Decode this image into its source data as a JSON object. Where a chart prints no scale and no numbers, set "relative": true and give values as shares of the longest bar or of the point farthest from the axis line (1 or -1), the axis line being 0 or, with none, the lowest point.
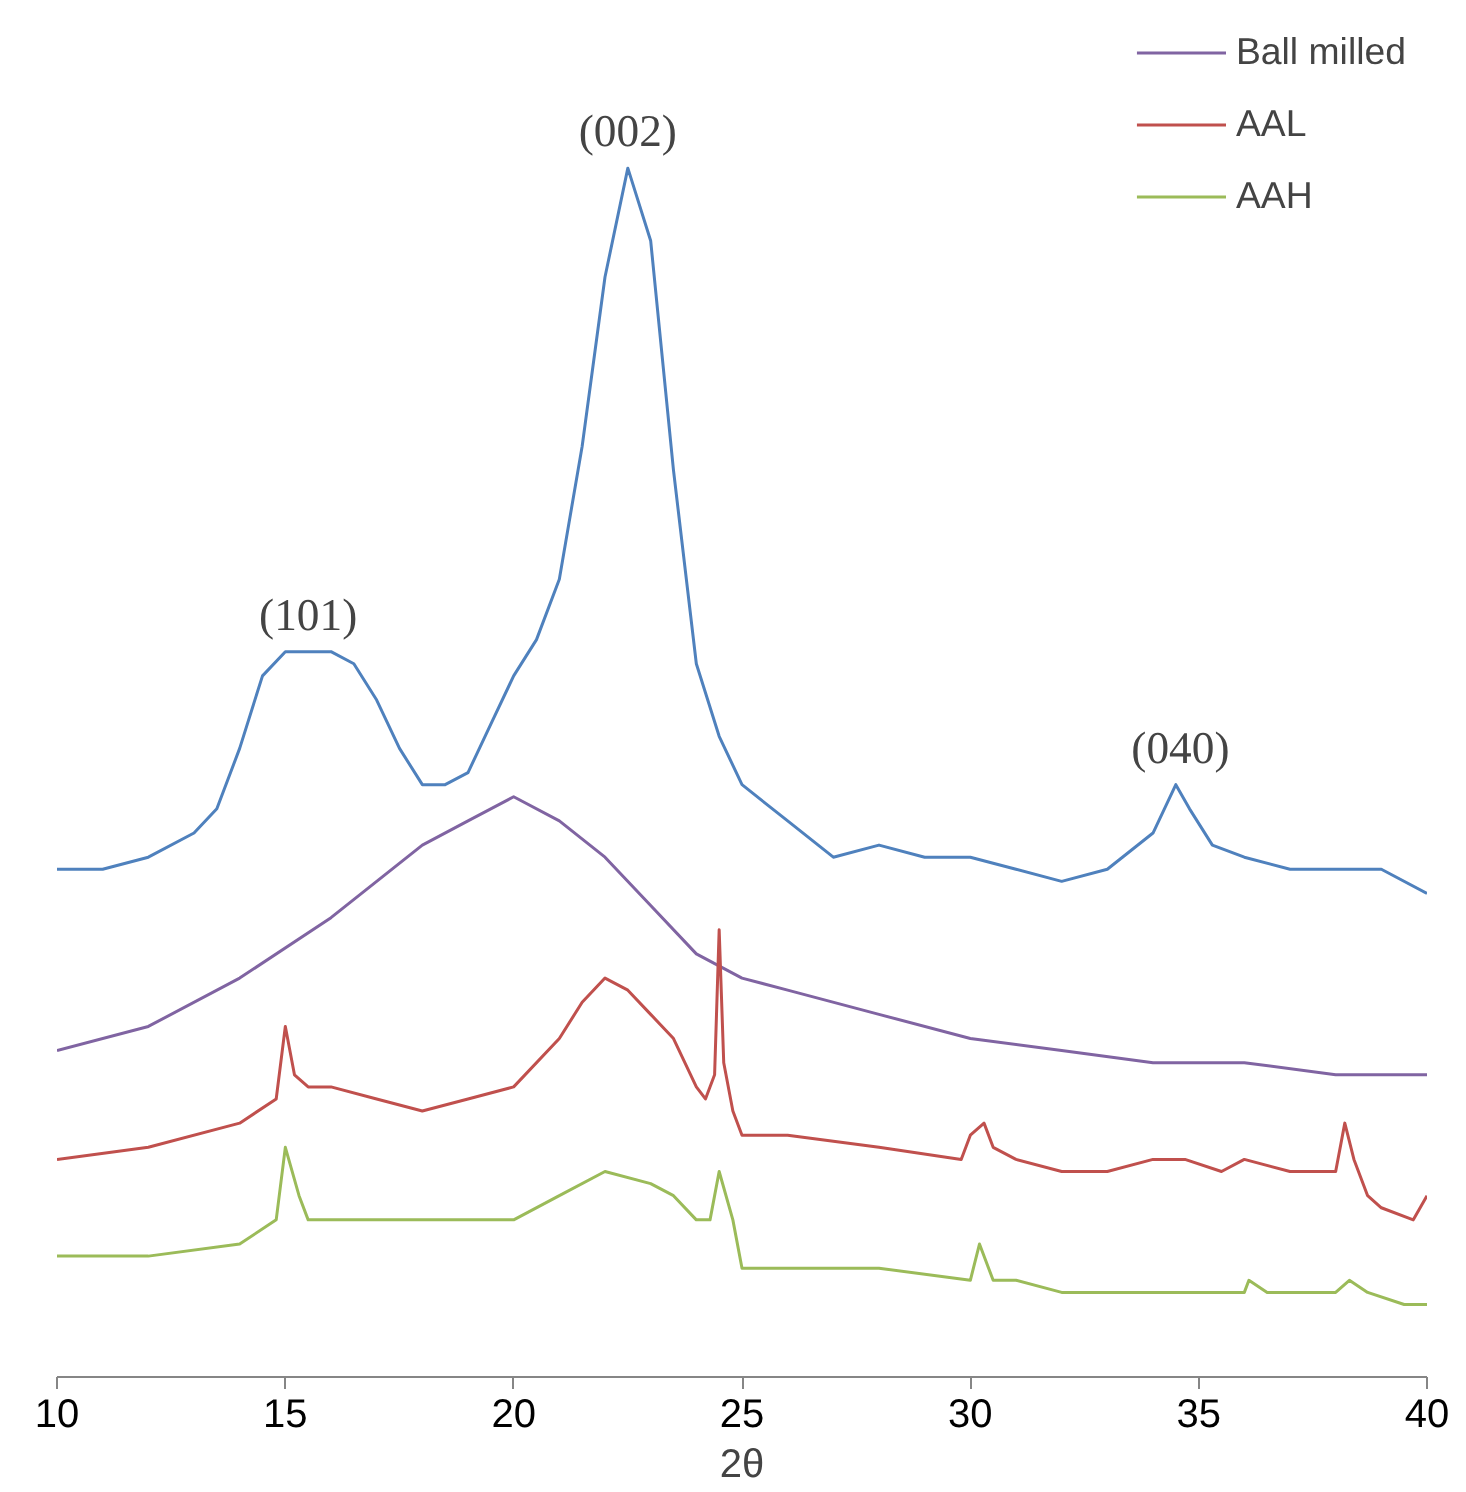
{
  "chart_data": {
    "type": "line",
    "relative": true,
    "xlabel": "2θ",
    "xlim": [
      10,
      40
    ],
    "xticks": [
      10,
      15,
      20,
      25,
      30,
      35,
      40
    ],
    "grid": false,
    "legend": "top right",
    "marker": "none",
    "line_style": "solid",
    "tick_labels": "x",
    "annotations": [
      {
        "text": "(101)",
        "x": 15.5,
        "y": 0.6
      },
      {
        "text": "(002)",
        "x": 22.5,
        "y": 1.0
      },
      {
        "text": "(040)",
        "x": 34.6,
        "y": 0.49
      }
    ],
    "series": [
      {
        "color": "#4f81bd",
        "x": [
          10,
          11,
          12,
          13,
          13.5,
          14,
          14.5,
          15,
          16,
          16.5,
          17,
          17.5,
          18,
          18.5,
          19,
          19.5,
          20,
          20.5,
          21,
          21.5,
          22,
          22.5,
          23,
          23.5,
          24,
          24.5,
          25,
          26,
          27,
          28,
          29,
          30,
          31,
          32,
          33,
          34,
          34.5,
          34.8,
          35.3,
          36,
          37,
          38,
          39,
          40
        ],
        "values": [
          0.42,
          0.42,
          0.43,
          0.45,
          0.47,
          0.52,
          0.58,
          0.6,
          0.6,
          0.59,
          0.56,
          0.52,
          0.49,
          0.49,
          0.5,
          0.54,
          0.58,
          0.61,
          0.66,
          0.77,
          0.91,
          1.0,
          0.94,
          0.75,
          0.59,
          0.53,
          0.49,
          0.46,
          0.43,
          0.44,
          0.43,
          0.43,
          0.42,
          0.41,
          0.42,
          0.45,
          0.49,
          0.47,
          0.44,
          0.43,
          0.42,
          0.42,
          0.42,
          0.4
        ]
      },
      {
        "name": "Ball milled",
        "color": "#8064a2",
        "x": [
          10,
          12,
          14,
          16,
          17,
          18,
          19,
          20,
          21,
          22,
          23,
          24,
          25,
          26,
          28,
          30,
          32,
          34,
          36,
          38,
          40
        ],
        "values": [
          0.27,
          0.29,
          0.33,
          0.38,
          0.41,
          0.44,
          0.46,
          0.48,
          0.46,
          0.43,
          0.39,
          0.35,
          0.33,
          0.32,
          0.3,
          0.28,
          0.27,
          0.26,
          0.26,
          0.25,
          0.25
        ]
      },
      {
        "name": "AAL",
        "color": "#c0504d",
        "x": [
          10,
          12,
          14,
          14.8,
          15,
          15.2,
          15.5,
          16,
          17,
          18,
          19,
          20,
          21,
          21.5,
          22,
          22.5,
          23,
          23.5,
          24,
          24.2,
          24.4,
          24.5,
          24.6,
          24.8,
          25,
          26,
          28,
          29.8,
          30,
          30.3,
          30.5,
          31,
          32,
          33,
          34,
          34.7,
          35.5,
          36,
          37,
          38,
          38.2,
          38.4,
          38.7,
          39,
          39.7,
          40
        ],
        "values": [
          0.18,
          0.19,
          0.21,
          0.23,
          0.29,
          0.25,
          0.24,
          0.24,
          0.23,
          0.22,
          0.23,
          0.24,
          0.28,
          0.31,
          0.33,
          0.32,
          0.3,
          0.28,
          0.24,
          0.23,
          0.25,
          0.37,
          0.26,
          0.22,
          0.2,
          0.2,
          0.19,
          0.18,
          0.2,
          0.21,
          0.19,
          0.18,
          0.17,
          0.17,
          0.18,
          0.18,
          0.17,
          0.18,
          0.17,
          0.17,
          0.21,
          0.18,
          0.15,
          0.14,
          0.13,
          0.15
        ]
      },
      {
        "name": "AAH",
        "color": "#9bbb59",
        "x": [
          10,
          12,
          14,
          14.8,
          15,
          15.3,
          15.5,
          16,
          17,
          18,
          19,
          20,
          21,
          22,
          23,
          23.5,
          24,
          24.3,
          24.5,
          24.8,
          25,
          26,
          28,
          30,
          30.2,
          30.5,
          31,
          32,
          34,
          35,
          36,
          36.1,
          36.5,
          38,
          38.3,
          38.7,
          39.5,
          40
        ],
        "values": [
          0.1,
          0.1,
          0.11,
          0.13,
          0.19,
          0.15,
          0.13,
          0.13,
          0.13,
          0.13,
          0.13,
          0.13,
          0.15,
          0.17,
          0.16,
          0.15,
          0.13,
          0.13,
          0.17,
          0.13,
          0.09,
          0.09,
          0.09,
          0.08,
          0.11,
          0.08,
          0.08,
          0.07,
          0.07,
          0.07,
          0.07,
          0.08,
          0.07,
          0.07,
          0.08,
          0.07,
          0.06,
          0.06
        ]
      }
    ]
  }
}
